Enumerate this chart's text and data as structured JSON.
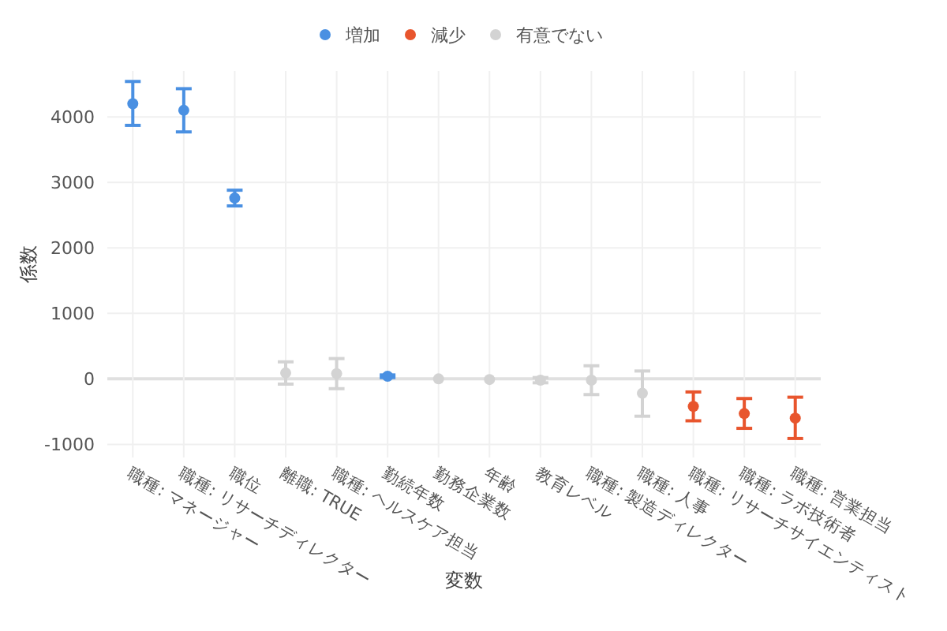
{
  "chart_data": {
    "type": "scatter",
    "xlabel": "変数",
    "ylabel": "係数",
    "categories": [
      "職種: マネージャー",
      "職種: リサーチディレクター",
      "職位",
      "離職: TRUE",
      "職種: ヘルスケア担当",
      "勤続年数",
      "勤務企業数",
      "年齢",
      "教育レベル",
      "職種: 製造ディレクター",
      "職種: 人事",
      "職種: リサーチサイエンティスト",
      "職種: ラボ技術者",
      "職種: 営業担当"
    ],
    "series": [
      {
        "name": "増加",
        "color": "#4a90e2",
        "values": [
          4200,
          4100,
          2760,
          null,
          null,
          40,
          null,
          null,
          null,
          null,
          null,
          null,
          null,
          null
        ],
        "errors": [
          [
            3870,
            4540
          ],
          [
            3770,
            4430
          ],
          [
            2640,
            2880
          ],
          null,
          null,
          [
            20,
            60
          ],
          null,
          null,
          null,
          null,
          null,
          null,
          null,
          null
        ]
      },
      {
        "name": "減少",
        "color": "#e8552d",
        "values": [
          null,
          null,
          null,
          null,
          null,
          null,
          null,
          null,
          null,
          null,
          null,
          -420,
          -530,
          -600
        ],
        "errors": [
          null,
          null,
          null,
          null,
          null,
          null,
          null,
          null,
          null,
          null,
          null,
          [
            -640,
            -200
          ],
          [
            -755,
            -300
          ],
          [
            -910,
            -280
          ]
        ]
      },
      {
        "name": "有意でない",
        "color": "#d3d3d3",
        "values": [
          null,
          null,
          null,
          90,
          80,
          null,
          0,
          -10,
          -20,
          -20,
          -220,
          null,
          null,
          null
        ],
        "errors": [
          null,
          null,
          null,
          [
            -80,
            260
          ],
          [
            -150,
            310
          ],
          null,
          null,
          null,
          [
            -60,
            20
          ],
          [
            -240,
            200
          ],
          [
            -570,
            120
          ],
          null,
          null,
          null
        ]
      }
    ],
    "ylim": [
      -1200,
      4700
    ],
    "yticks": [
      -1000,
      0,
      1000,
      2000,
      3000,
      4000
    ],
    "grid": true,
    "legend": "top",
    "marker": "circle"
  }
}
